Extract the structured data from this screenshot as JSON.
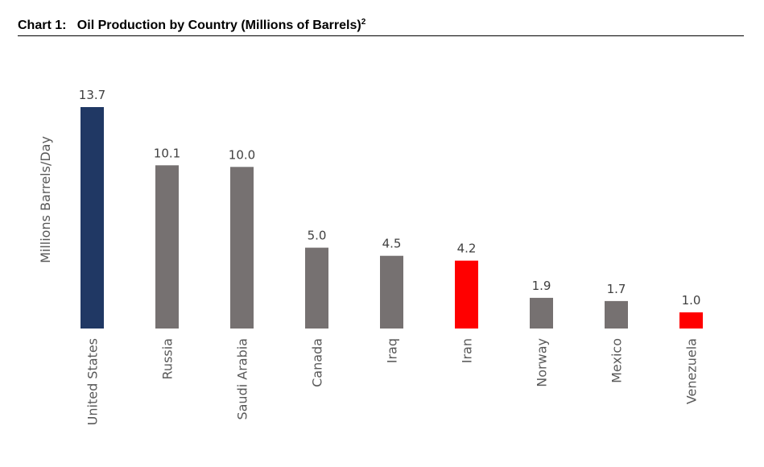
{
  "header": {
    "chart_number": "Chart 1:",
    "title": "Oil Production by Country (Millions of Barrels)",
    "footnote": "2"
  },
  "colors": {
    "highlight_us": "#203864",
    "default_bar": "#767171",
    "highlight_sanctioned": "#ff0000"
  },
  "chart_data": {
    "type": "bar",
    "title": "Oil Production by Country (Millions of Barrels)",
    "ylabel": "Millions Barrels/Day",
    "xlabel": "",
    "categories": [
      "United States",
      "Russia",
      "Saudi Arabia",
      "Canada",
      "Iraq",
      "Iran",
      "Norway",
      "Mexico",
      "Venezuela"
    ],
    "values": [
      13.7,
      10.1,
      10.0,
      5.0,
      4.5,
      4.2,
      1.9,
      1.7,
      1.0
    ],
    "data_labels": [
      "13.7",
      "10.1",
      "10.0",
      "5.0",
      "4.5",
      "4.2",
      "1.9",
      "1.7",
      "1.0"
    ],
    "bar_colors": [
      "#203864",
      "#767171",
      "#767171",
      "#767171",
      "#767171",
      "#ff0000",
      "#767171",
      "#767171",
      "#ff0000"
    ],
    "ylim": [
      0,
      13.7
    ],
    "grid": false,
    "legend": "none"
  }
}
